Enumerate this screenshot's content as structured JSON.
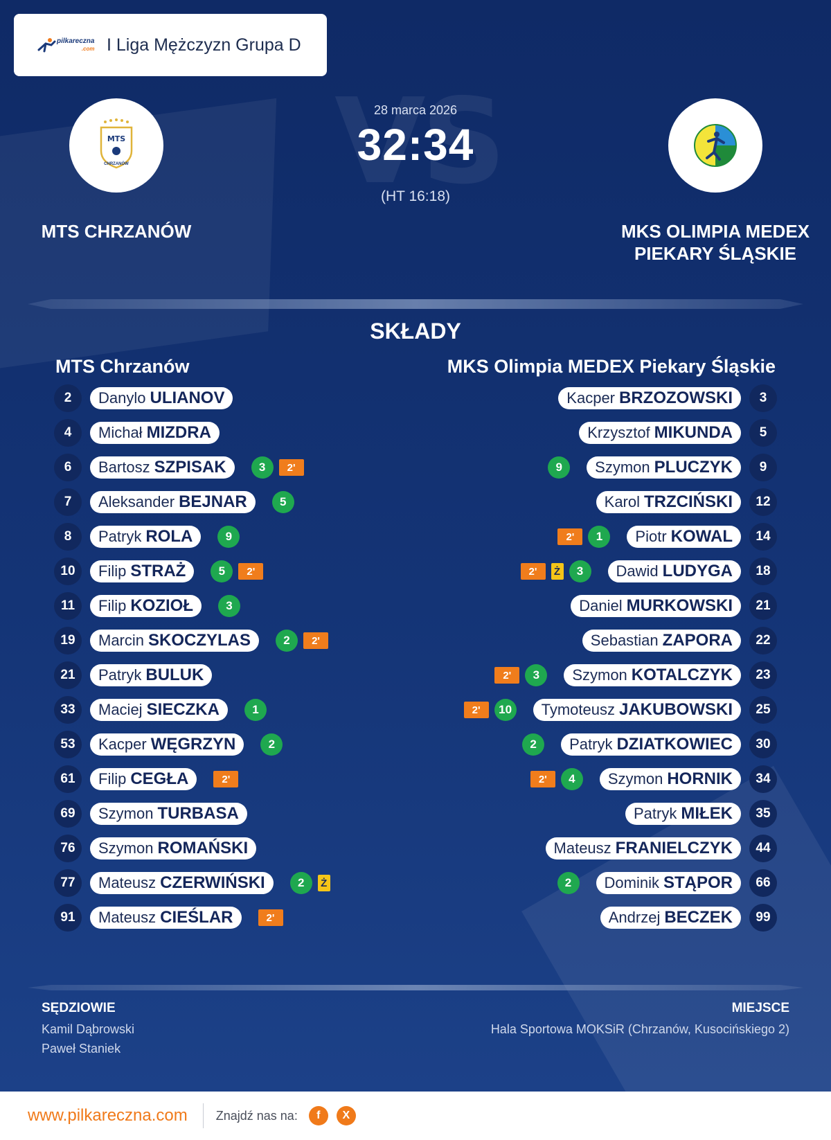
{
  "league": {
    "logo_text": "pilkareczna",
    "logo_suffix": ".com",
    "name": "I Liga Mężczyzn Grupa D"
  },
  "match": {
    "date": "28 marca 2026",
    "score": "32:34",
    "halftime": "(HT 16:18)",
    "vs_watermark": "VS"
  },
  "home_team": {
    "name": "MTS CHRZANÓW",
    "logo_text_top": "MTS",
    "logo_text_bottom": "CHRZANÓW"
  },
  "away_team": {
    "name_line1": "MKS OLIMPIA MEDEX",
    "name_line2": "PIEKARY ŚLĄSKIE"
  },
  "lineups": {
    "title": "SKŁADY",
    "home_title": "MTS Chrzanów",
    "away_title": "MKS Olimpia MEDEX Piekary Śląskie",
    "home": [
      {
        "number": "2",
        "first": "Danylo",
        "last": "ULIANOV",
        "goals": "",
        "yellow": "",
        "suspension": ""
      },
      {
        "number": "4",
        "first": "Michał",
        "last": "MIZDRA",
        "goals": "",
        "yellow": "",
        "suspension": ""
      },
      {
        "number": "6",
        "first": "Bartosz",
        "last": "SZPISAK",
        "goals": "3",
        "yellow": "",
        "suspension": "2'"
      },
      {
        "number": "7",
        "first": "Aleksander",
        "last": "BEJNAR",
        "goals": "5",
        "yellow": "",
        "suspension": ""
      },
      {
        "number": "8",
        "first": "Patryk",
        "last": "ROLA",
        "goals": "9",
        "yellow": "",
        "suspension": ""
      },
      {
        "number": "10",
        "first": "Filip",
        "last": "STRAŻ",
        "goals": "5",
        "yellow": "",
        "suspension": "2'"
      },
      {
        "number": "11",
        "first": "Filip",
        "last": "KOZIOŁ",
        "goals": "3",
        "yellow": "",
        "suspension": ""
      },
      {
        "number": "19",
        "first": "Marcin",
        "last": "SKOCZYLAS",
        "goals": "2",
        "yellow": "",
        "suspension": "2'"
      },
      {
        "number": "21",
        "first": "Patryk",
        "last": "BULUK",
        "goals": "",
        "yellow": "",
        "suspension": ""
      },
      {
        "number": "33",
        "first": "Maciej",
        "last": "SIECZKA",
        "goals": "1",
        "yellow": "",
        "suspension": ""
      },
      {
        "number": "53",
        "first": "Kacper",
        "last": "WĘGRZYN",
        "goals": "2",
        "yellow": "",
        "suspension": ""
      },
      {
        "number": "61",
        "first": "Filip",
        "last": "CEGŁA",
        "goals": "",
        "yellow": "",
        "suspension": "2'"
      },
      {
        "number": "69",
        "first": "Szymon",
        "last": "TURBASA",
        "goals": "",
        "yellow": "",
        "suspension": ""
      },
      {
        "number": "76",
        "first": "Szymon",
        "last": "ROMAŃSKI",
        "goals": "",
        "yellow": "",
        "suspension": ""
      },
      {
        "number": "77",
        "first": "Mateusz",
        "last": "CZERWIŃSKI",
        "goals": "2",
        "yellow": "Ż",
        "suspension": ""
      },
      {
        "number": "91",
        "first": "Mateusz",
        "last": "CIEŚLAR",
        "goals": "",
        "yellow": "",
        "suspension": "2'"
      }
    ],
    "away": [
      {
        "number": "3",
        "first": "Kacper",
        "last": "BRZOZOWSKI",
        "goals": "",
        "yellow": "",
        "suspension": ""
      },
      {
        "number": "5",
        "first": "Krzysztof",
        "last": "MIKUNDA",
        "goals": "",
        "yellow": "",
        "suspension": ""
      },
      {
        "number": "9",
        "first": "Szymon",
        "last": "PLUCZYK",
        "goals": "9",
        "yellow": "",
        "suspension": ""
      },
      {
        "number": "12",
        "first": "Karol",
        "last": "TRZCIŃSKI",
        "goals": "",
        "yellow": "",
        "suspension": ""
      },
      {
        "number": "14",
        "first": "Piotr",
        "last": "KOWAL",
        "goals": "1",
        "yellow": "",
        "suspension": "2'"
      },
      {
        "number": "18",
        "first": "Dawid",
        "last": "LUDYGA",
        "goals": "3",
        "yellow": "Ż",
        "suspension": "2'"
      },
      {
        "number": "21",
        "first": "Daniel",
        "last": "MURKOWSKI",
        "goals": "",
        "yellow": "",
        "suspension": ""
      },
      {
        "number": "22",
        "first": "Sebastian",
        "last": "ZAPORA",
        "goals": "",
        "yellow": "",
        "suspension": ""
      },
      {
        "number": "23",
        "first": "Szymon",
        "last": "KOTALCZYK",
        "goals": "3",
        "yellow": "",
        "suspension": "2'"
      },
      {
        "number": "25",
        "first": "Tymoteusz",
        "last": "JAKUBOWSKI",
        "goals": "10",
        "yellow": "",
        "suspension": "2'"
      },
      {
        "number": "30",
        "first": "Patryk",
        "last": "DZIATKOWIEC",
        "goals": "2",
        "yellow": "",
        "suspension": ""
      },
      {
        "number": "34",
        "first": "Szymon",
        "last": "HORNIK",
        "goals": "4",
        "yellow": "",
        "suspension": "2'"
      },
      {
        "number": "35",
        "first": "Patryk",
        "last": "MIŁEK",
        "goals": "",
        "yellow": "",
        "suspension": ""
      },
      {
        "number": "44",
        "first": "Mateusz",
        "last": "FRANIELCZYK",
        "goals": "",
        "yellow": "",
        "suspension": ""
      },
      {
        "number": "66",
        "first": "Dominik",
        "last": "STĄPOR",
        "goals": "2",
        "yellow": "",
        "suspension": ""
      },
      {
        "number": "99",
        "first": "Andrzej",
        "last": "BECZEK",
        "goals": "",
        "yellow": "",
        "suspension": ""
      }
    ]
  },
  "officials": {
    "label": "SĘDZIOWIE",
    "names": [
      "Kamil Dąbrowski",
      "Paweł Staniek"
    ]
  },
  "venue": {
    "label": "MIEJSCE",
    "value": "Hala Sportowa MOKSiR (Chrzanów, Kusocińskiego 2)"
  },
  "footer": {
    "url": "www.pilkareczna.com",
    "find_us": "Znajdź nas na:",
    "social": [
      "f",
      "X"
    ]
  },
  "colors": {
    "background": "#0f2a66",
    "goal_badge": "#1fa84f",
    "suspension_badge": "#f07d1c",
    "yellow_card": "#f5c518",
    "brand_orange": "#f07a1a"
  }
}
